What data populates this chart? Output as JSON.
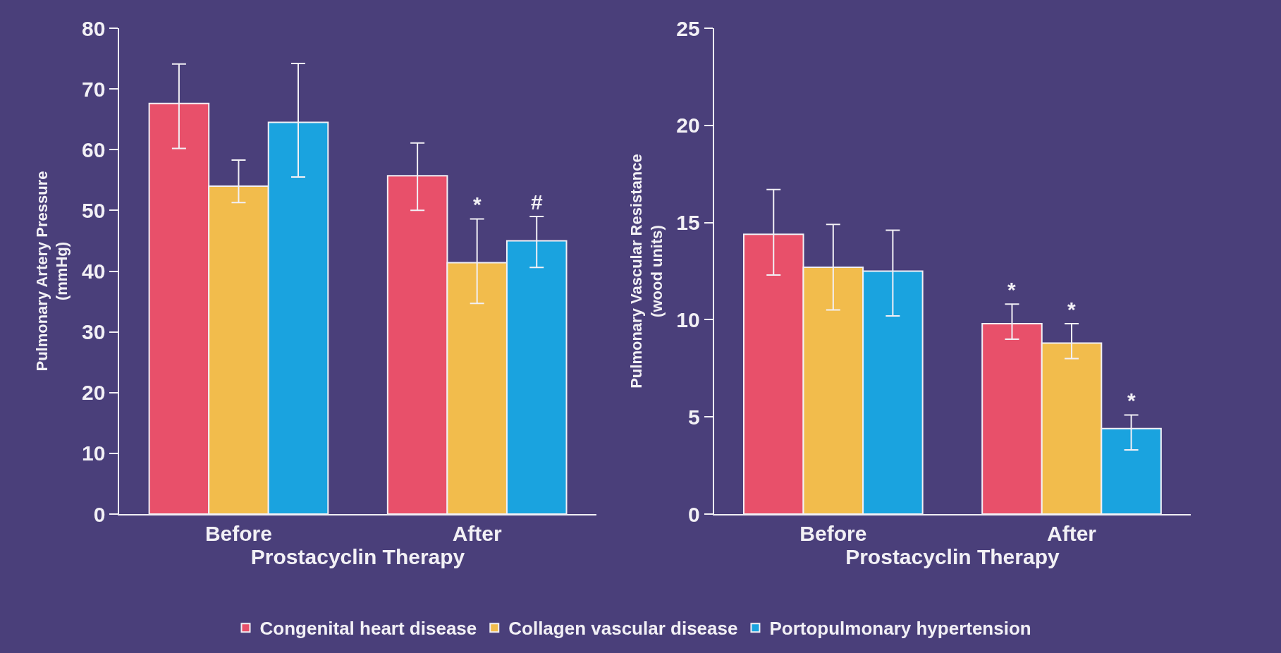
{
  "chart_data": [
    {
      "type": "bar",
      "ylabel": "Pulmonary Artery Pressure\n(mmHg)",
      "xlabel": "Prostacyclin Therapy",
      "categories": [
        "Before",
        "After"
      ],
      "ylim": [
        0,
        80
      ],
      "yticks": [
        0,
        10,
        20,
        30,
        40,
        50,
        60,
        70,
        80
      ],
      "grid": false,
      "legend": "bottom",
      "series": [
        {
          "name": "Congenital heart disease",
          "color": "#e8506a",
          "values": [
            67.6,
            55.7
          ],
          "errors": [
            [
              60.2,
              74.1
            ],
            [
              50.0,
              61.1
            ]
          ]
        },
        {
          "name": "Collagen vascular disease",
          "color": "#f2bc4c",
          "values": [
            54.0,
            41.4
          ],
          "errors": [
            [
              51.3,
              58.3
            ],
            [
              34.7,
              48.6
            ]
          ],
          "value_labels": [
            null,
            "*"
          ]
        },
        {
          "name": "Portopulmonary hypertension",
          "color": "#1aa3df",
          "values": [
            64.5,
            45.0
          ],
          "errors": [
            [
              55.5,
              74.2
            ],
            [
              40.6,
              49.0
            ]
          ],
          "value_labels": [
            null,
            "#"
          ]
        }
      ]
    },
    {
      "type": "bar",
      "ylabel": "Pulmonary Vascular Resistance\n(wood units)",
      "xlabel": "Prostacyclin Therapy",
      "categories": [
        "Before",
        "After"
      ],
      "ylim": [
        0,
        25
      ],
      "yticks": [
        0,
        5,
        10,
        15,
        20,
        25
      ],
      "grid": false,
      "legend": "bottom",
      "series": [
        {
          "name": "Congenital heart disease",
          "color": "#e8506a",
          "values": [
            14.4,
            9.8
          ],
          "errors": [
            [
              12.3,
              16.7
            ],
            [
              9.0,
              10.8
            ]
          ],
          "value_labels": [
            null,
            "*"
          ]
        },
        {
          "name": "Collagen vascular disease",
          "color": "#f2bc4c",
          "values": [
            12.7,
            8.8
          ],
          "errors": [
            [
              10.5,
              14.9
            ],
            [
              8.0,
              9.8
            ]
          ],
          "value_labels": [
            null,
            "*"
          ]
        },
        {
          "name": "Portopulmonary hypertension",
          "color": "#1aa3df",
          "values": [
            12.5,
            4.4
          ],
          "errors": [
            [
              10.2,
              14.6
            ],
            [
              3.3,
              5.1
            ]
          ],
          "value_labels": [
            null,
            "*"
          ]
        }
      ]
    }
  ]
}
